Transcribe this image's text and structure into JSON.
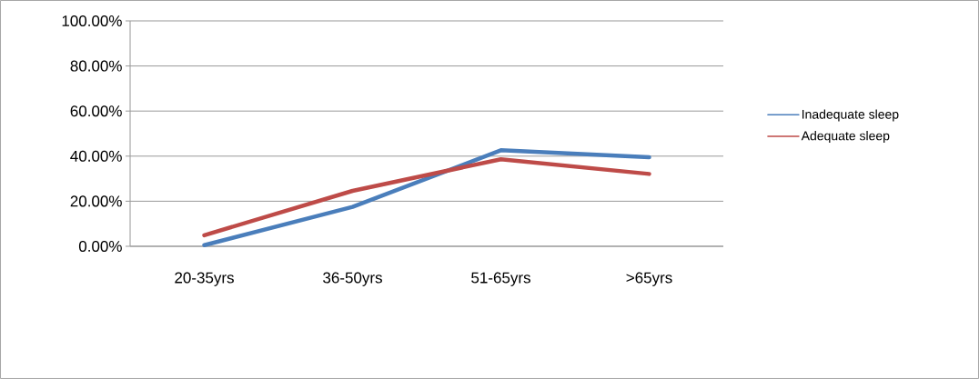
{
  "chart_data": {
    "type": "line",
    "categories": [
      "20-35yrs",
      "36-50yrs",
      "51-65yrs",
      ">65yrs"
    ],
    "series": [
      {
        "name": "Inadequate sleep",
        "color": "#4a7ebb",
        "values": [
          0.5,
          17.5,
          42.6,
          39.5
        ]
      },
      {
        "name": "Adequate sleep",
        "color": "#be4b48",
        "values": [
          4.9,
          24.6,
          38.6,
          32.1
        ]
      }
    ],
    "ylim": [
      0,
      100
    ],
    "yticks": [
      {
        "value": 0,
        "label": "0.00%"
      },
      {
        "value": 20,
        "label": "20.00%"
      },
      {
        "value": 40,
        "label": "40.00%"
      },
      {
        "value": 60,
        "label": "60.00%"
      },
      {
        "value": 80,
        "label": "80.00%"
      },
      {
        "value": 100,
        "label": "100.00%"
      }
    ],
    "grid": "y",
    "legend": "right",
    "marker": "none",
    "line_style": "solid"
  }
}
